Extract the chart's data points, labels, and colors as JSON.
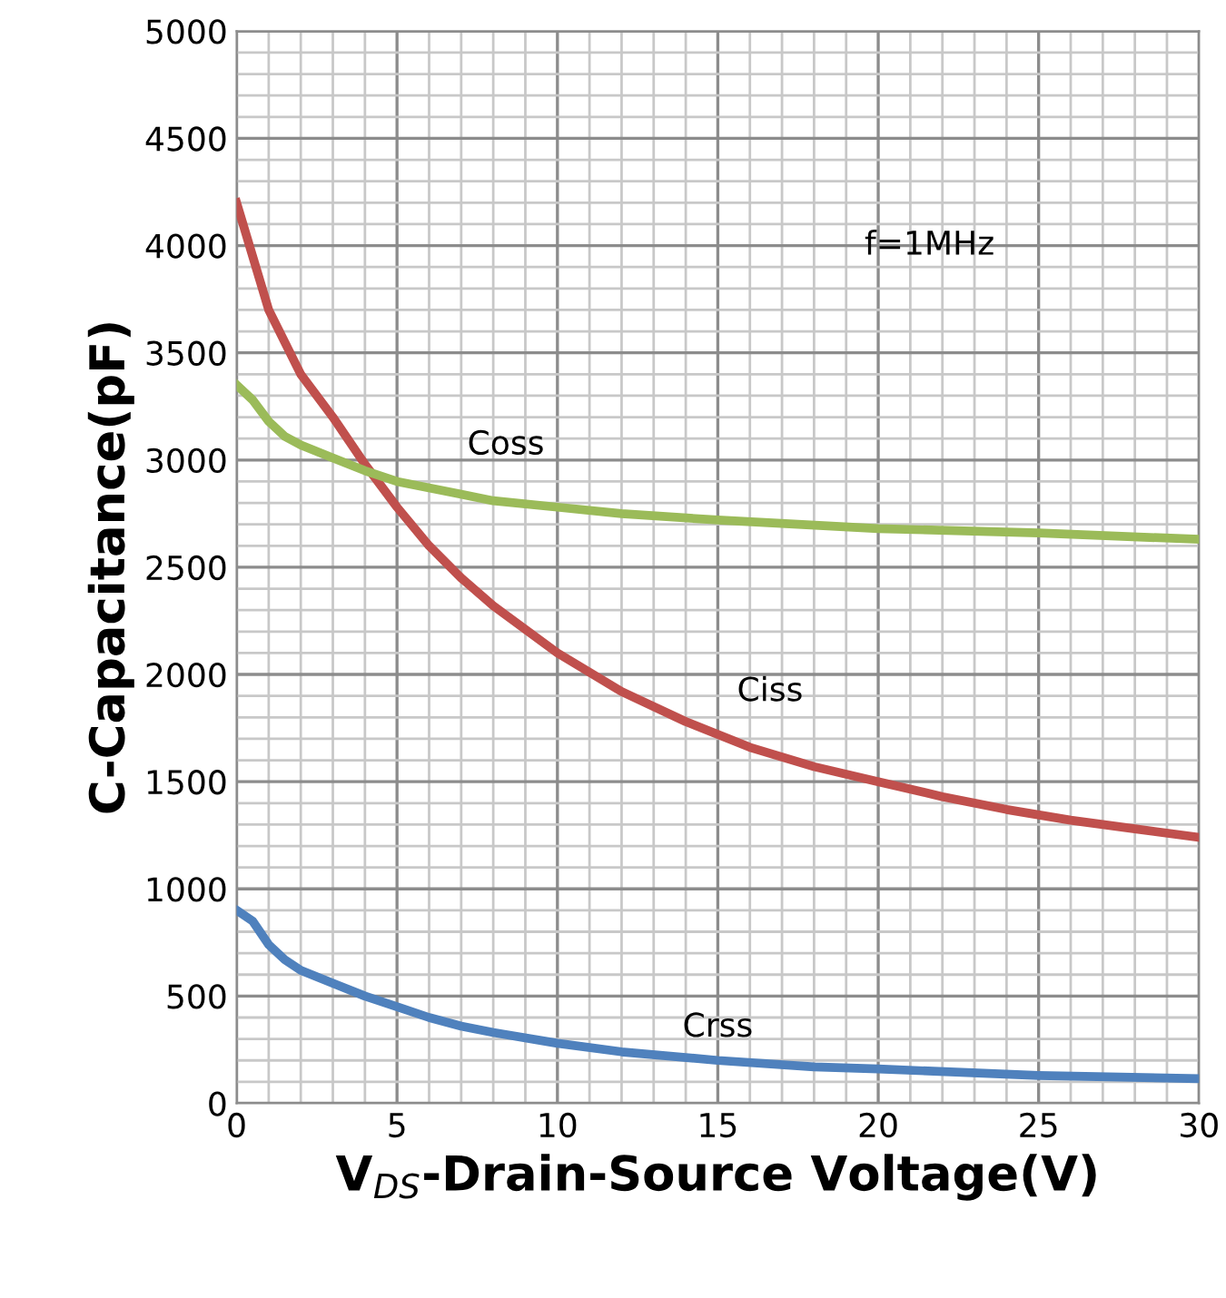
{
  "chart_data": {
    "type": "line",
    "xlabel": "V$_{DS}$-Drain-Source Voltage(V)",
    "ylabel": "C-Capacitance(pF)",
    "xlim": [
      0,
      30
    ],
    "xticks": [
      0,
      5,
      10,
      15,
      20,
      25,
      30
    ],
    "ylim": [
      0,
      5000
    ],
    "yticks": [
      0,
      500,
      1000,
      1500,
      2000,
      2500,
      3000,
      3500,
      4000,
      4500,
      5000
    ],
    "grid": true,
    "marker": "none",
    "line_style": "solid",
    "series": [
      {
        "name": "Ciss",
        "color": "#c0504d",
        "x": [
          0,
          0.5,
          1,
          1.5,
          2,
          3,
          4,
          5,
          6,
          7,
          8,
          10,
          12,
          14,
          16,
          18,
          20,
          22,
          24,
          26,
          28,
          30
        ],
        "values": [
          4200,
          3950,
          3700,
          3550,
          3400,
          3200,
          2980,
          2780,
          2600,
          2450,
          2320,
          2100,
          1920,
          1780,
          1660,
          1570,
          1500,
          1430,
          1370,
          1320,
          1280,
          1240
        ]
      },
      {
        "name": "Coss",
        "color": "#9bbb59",
        "x": [
          0,
          0.5,
          1,
          1.5,
          2,
          3,
          4,
          5,
          6,
          7,
          8,
          10,
          12,
          15,
          20,
          25,
          30
        ],
        "values": [
          3350,
          3280,
          3180,
          3110,
          3070,
          3010,
          2950,
          2900,
          2870,
          2840,
          2810,
          2780,
          2750,
          2720,
          2680,
          2660,
          2630
        ]
      },
      {
        "name": "Crss",
        "color": "#4f81bd",
        "x": [
          0,
          0.5,
          1,
          1.5,
          2,
          3,
          4,
          5,
          6,
          7,
          8,
          10,
          12,
          15,
          18,
          20,
          25,
          30
        ],
        "values": [
          900,
          850,
          740,
          670,
          620,
          560,
          500,
          450,
          400,
          360,
          330,
          280,
          240,
          200,
          170,
          160,
          130,
          115
        ]
      }
    ],
    "annotations": [
      "f=1MHz"
    ]
  }
}
